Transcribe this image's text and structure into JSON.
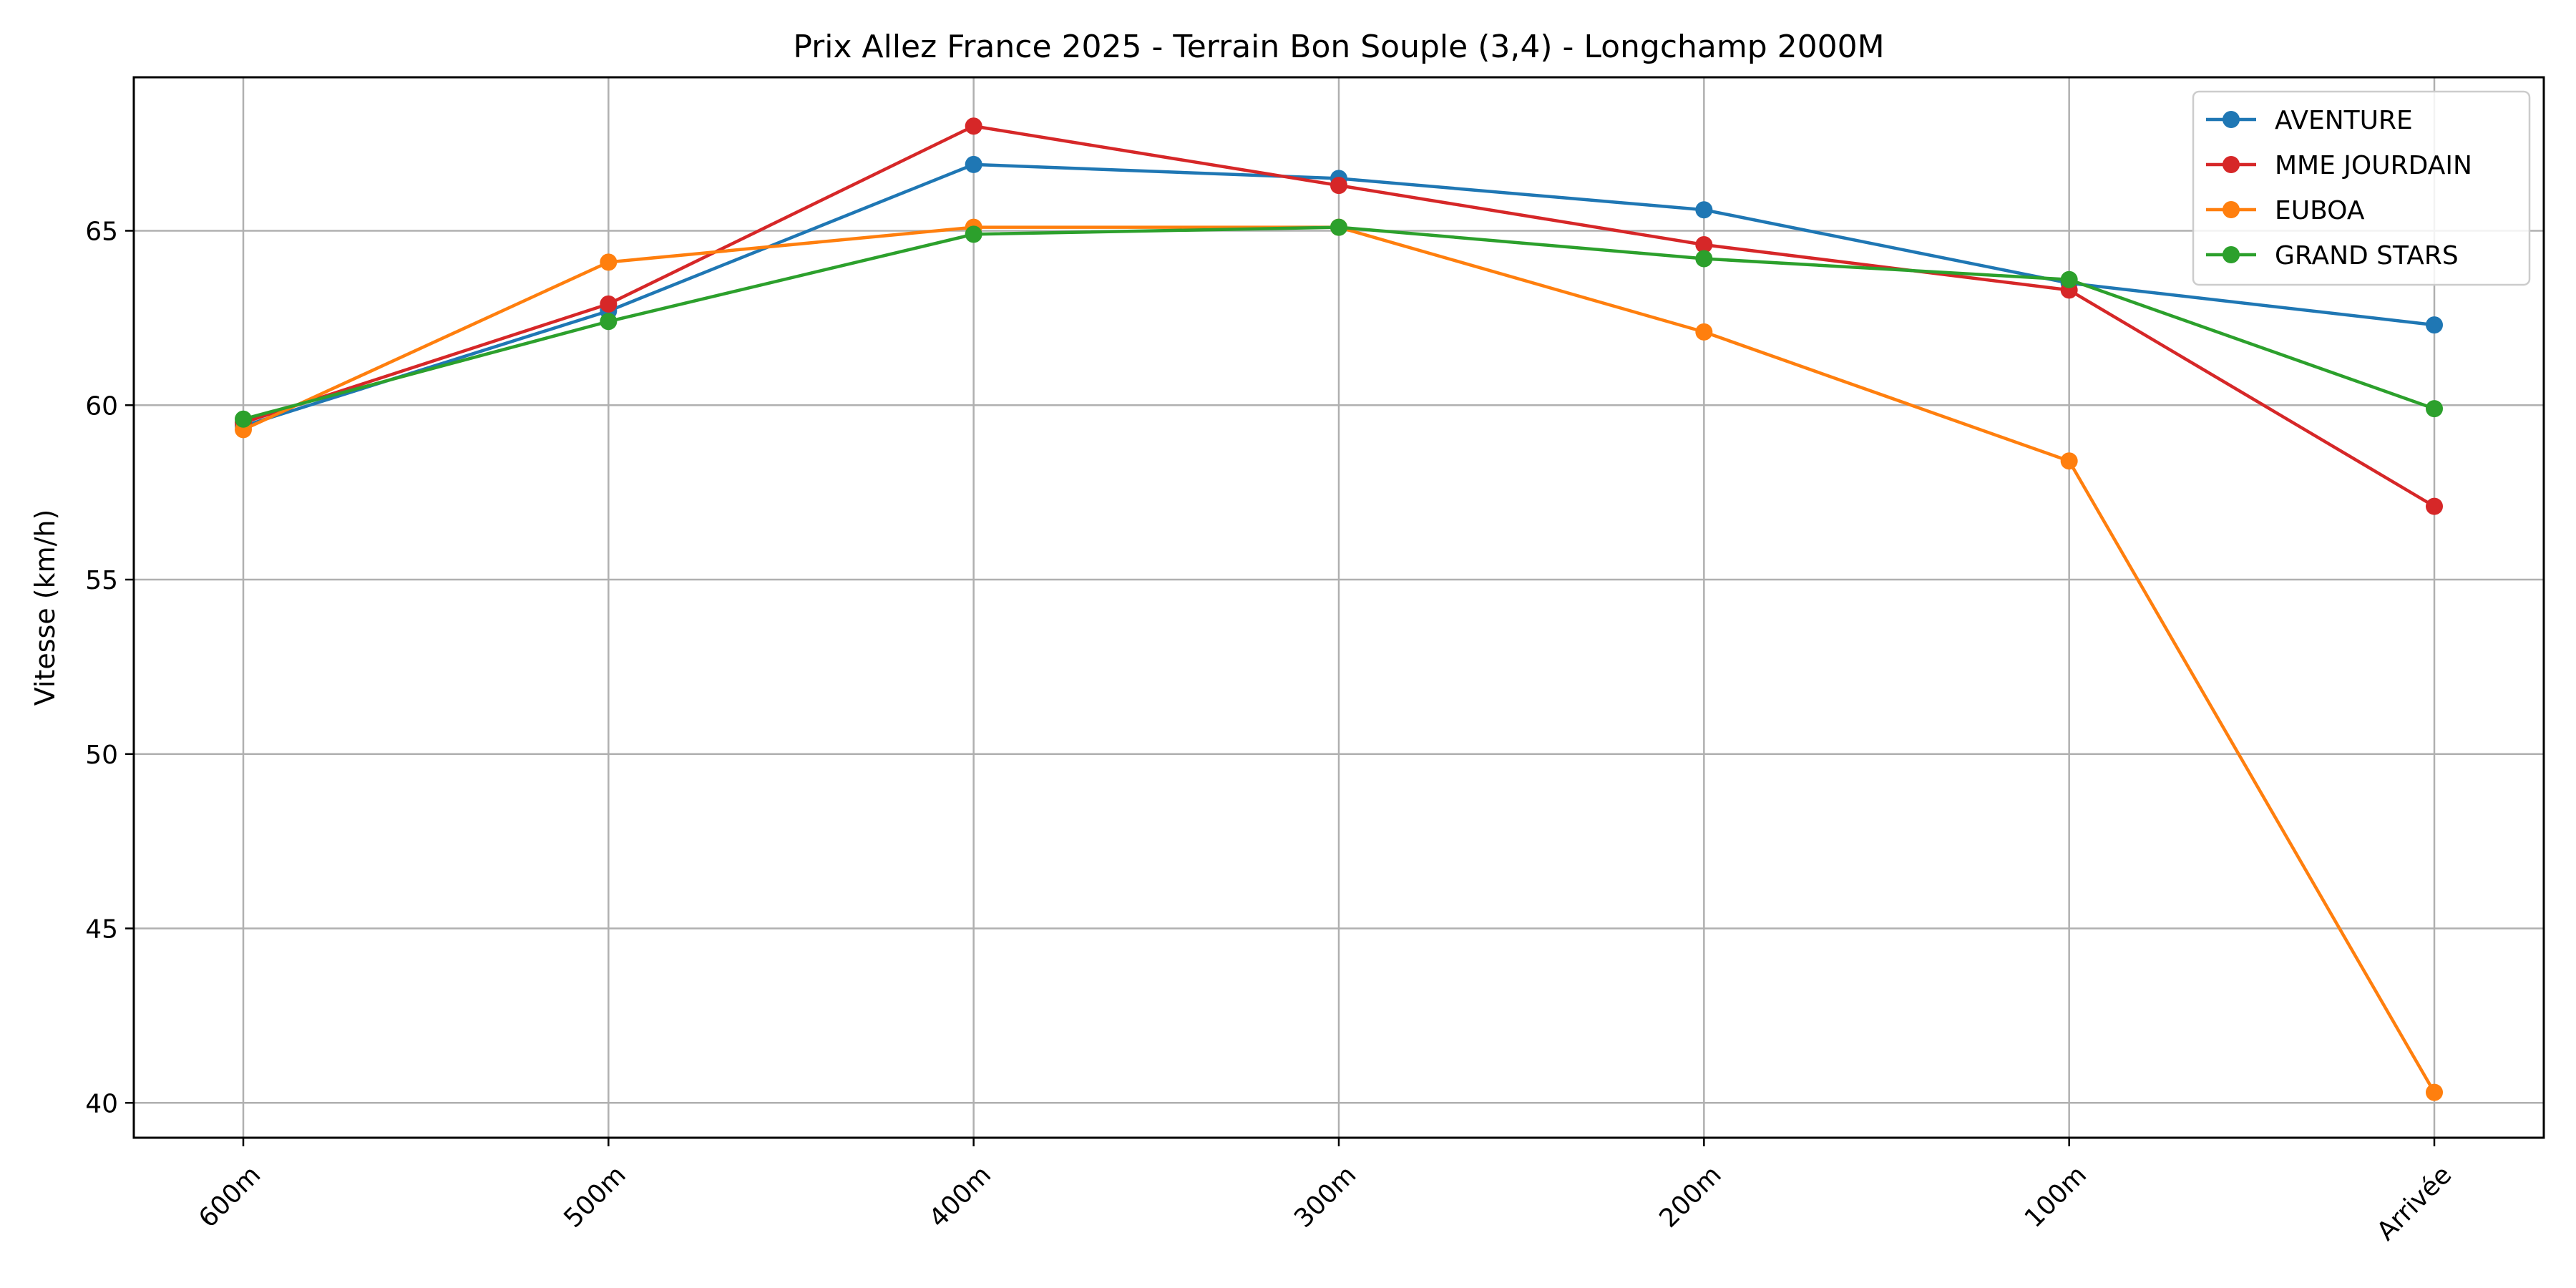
{
  "chart_data": {
    "type": "line",
    "title": "Prix Allez France 2025 - Terrain Bon Souple (3,4) - Longchamp 2000M",
    "xlabel": "",
    "ylabel": "Vitesse (km/h)",
    "categories": [
      "600m",
      "500m",
      "400m",
      "300m",
      "200m",
      "100m",
      "Arrivée"
    ],
    "ylim": [
      39.0,
      69.4
    ],
    "yticks": [
      40,
      45,
      50,
      55,
      60,
      65
    ],
    "grid": true,
    "legend_position": "top-right",
    "series": [
      {
        "name": "AVENTURE",
        "color": "#1f77b4",
        "values": [
          59.4,
          62.7,
          66.9,
          66.5,
          65.6,
          63.5,
          62.3
        ]
      },
      {
        "name": "MME JOURDAIN",
        "color": "#d62728",
        "values": [
          59.5,
          62.9,
          68.0,
          66.3,
          64.6,
          63.3,
          57.1
        ]
      },
      {
        "name": "EUBOA",
        "color": "#ff7f0e",
        "values": [
          59.3,
          64.1,
          65.1,
          65.1,
          62.1,
          58.4,
          40.3
        ]
      },
      {
        "name": "GRAND STARS",
        "color": "#2ca02c",
        "values": [
          59.6,
          62.4,
          64.9,
          65.1,
          64.2,
          63.6,
          59.9
        ]
      }
    ]
  }
}
